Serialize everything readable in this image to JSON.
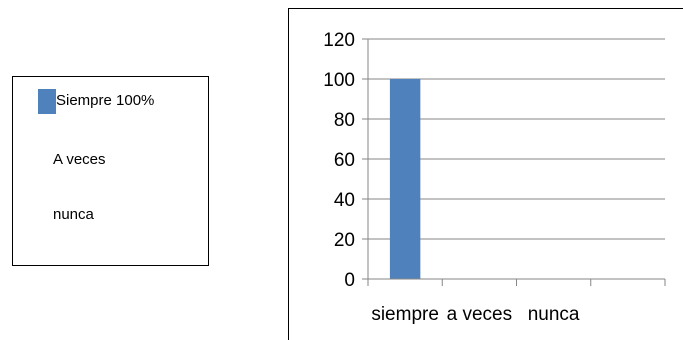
{
  "chart_data": {
    "type": "bar",
    "categories": [
      "siempre",
      "a veces",
      "nunca"
    ],
    "values": [
      100,
      0,
      0
    ],
    "ylim": [
      0,
      120
    ],
    "yticks": [
      0,
      20,
      40,
      60,
      80,
      100,
      120
    ],
    "grid": true,
    "bar_color": "#4f81bd",
    "legend": {
      "placement": "left",
      "entries": [
        "Siempre 100%",
        "A veces",
        "nunca"
      ]
    }
  }
}
